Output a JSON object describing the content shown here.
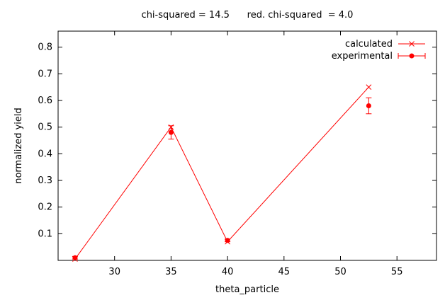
{
  "chart_data": {
    "type": "line",
    "title": "chi-squared = 14.5      red. chi-squared  = 4.0",
    "xlabel": "theta_particle",
    "ylabel": "normalized yield",
    "xlim": [
      25,
      58.5
    ],
    "ylim": [
      0,
      0.86
    ],
    "xticks": [
      30,
      35,
      40,
      45,
      50,
      55
    ],
    "yticks": [
      0.1,
      0.2,
      0.3,
      0.4,
      0.5,
      0.6,
      0.7,
      0.8
    ],
    "grid": false,
    "legend_position": "top-right",
    "series": [
      {
        "name": "calculated",
        "color": "#ff0000",
        "marker": "x",
        "line": true,
        "x": [
          26.5,
          35,
          40,
          52.5
        ],
        "y": [
          0.005,
          0.5,
          0.07,
          0.65
        ]
      },
      {
        "name": "experimental",
        "color": "#ff0000",
        "marker": "circle",
        "line": false,
        "x": [
          26.5,
          35,
          40,
          52.5
        ],
        "y": [
          0.01,
          0.48,
          0.075,
          0.58
        ],
        "yerr": [
          0.005,
          0.025,
          0.005,
          0.03
        ]
      }
    ]
  }
}
